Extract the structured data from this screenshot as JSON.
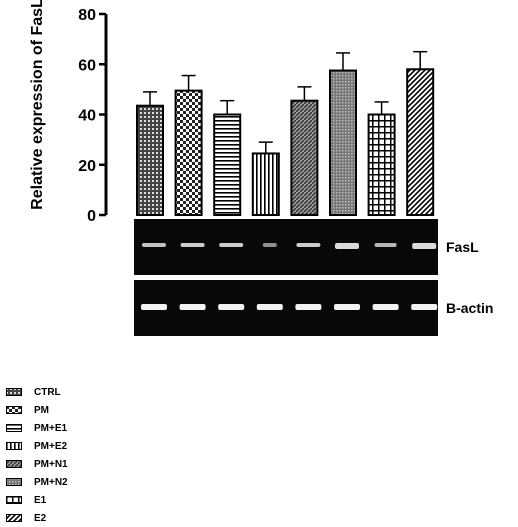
{
  "chart_data": {
    "type": "bar",
    "ylabel": "Relative expression of FasL",
    "ylim": [
      0,
      80
    ],
    "yticks": [
      0,
      20,
      40,
      60,
      80
    ],
    "categories": [
      "CTRL",
      "PM",
      "PM+E1",
      "PM+E2",
      "PM+N1",
      "PM+N2",
      "E1",
      "E2"
    ],
    "values": [
      43.5,
      49.5,
      40,
      24.5,
      45.5,
      57.5,
      40,
      58
    ],
    "errors": [
      5.5,
      6,
      5.5,
      4.5,
      5.5,
      7,
      5,
      7
    ],
    "patterns": [
      "grid",
      "checker",
      "hlines",
      "vlines",
      "diag",
      "dense",
      "cross",
      "diag2"
    ],
    "grid": false,
    "legend_position": "bottom-left"
  },
  "blots": [
    {
      "label": "FasL"
    },
    {
      "label": "B-actin"
    }
  ],
  "legend": {
    "items": [
      {
        "label": "CTRL",
        "pattern": "grid"
      },
      {
        "label": "PM",
        "pattern": "checker"
      },
      {
        "label": "PM+E1",
        "pattern": "hlines"
      },
      {
        "label": "PM+E2",
        "pattern": "vlines"
      },
      {
        "label": "PM+N1",
        "pattern": "diag"
      },
      {
        "label": "PM+N2",
        "pattern": "dense"
      },
      {
        "label": "E1",
        "pattern": "cross"
      },
      {
        "label": "E2",
        "pattern": "diag2"
      }
    ]
  }
}
